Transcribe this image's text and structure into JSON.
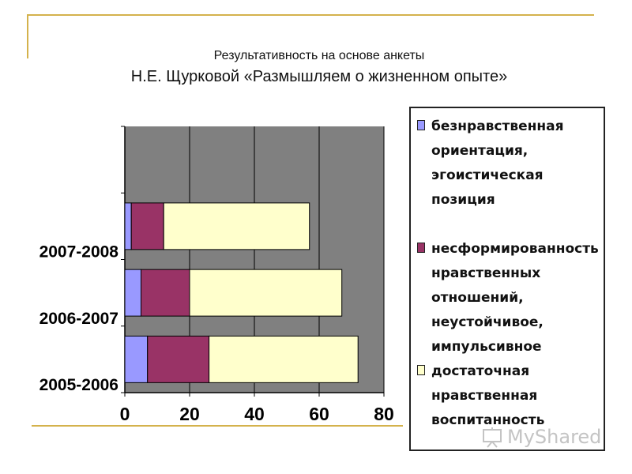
{
  "title_line1": "Результативность на основе  анкеты",
  "title_line2": "Н.Е. Щурковой «Размышляем о жизненном опыте»",
  "chart_data": {
    "type": "bar",
    "orientation": "horizontal",
    "stacked": true,
    "categories": [
      "2005-2006",
      "2006-2007",
      "2007-2008"
    ],
    "series": [
      {
        "name": "безнравственная ориентация, эгоистическая позиция",
        "values": [
          7,
          5,
          2
        ],
        "color": "#9999ff"
      },
      {
        "name": "несформированность нравственных отношений, неустойчивое, импульсивное",
        "values": [
          19,
          15,
          10
        ],
        "color": "#993366"
      },
      {
        "name": "достаточная нравственная воспитанность",
        "values": [
          46,
          47,
          45
        ],
        "color": "#ffffcc"
      }
    ],
    "xlim": [
      0,
      80
    ],
    "xticks": [
      "0",
      "20",
      "40",
      "60",
      "80"
    ],
    "grid": "vertical",
    "plot_background": "#808080",
    "legend_position": "right"
  },
  "legend": [
    {
      "label": "безнравственная ориентация, эгоистическая позиция",
      "color": "#9999ff"
    },
    {
      "label": "несформированность нравственных отношений, неустойчивое, импульсивное",
      "color": "#993366"
    },
    {
      "label": "достаточная нравственная воспитанность",
      "color": "#ffffcc"
    }
  ],
  "watermark": {
    "text": "MyShared"
  }
}
